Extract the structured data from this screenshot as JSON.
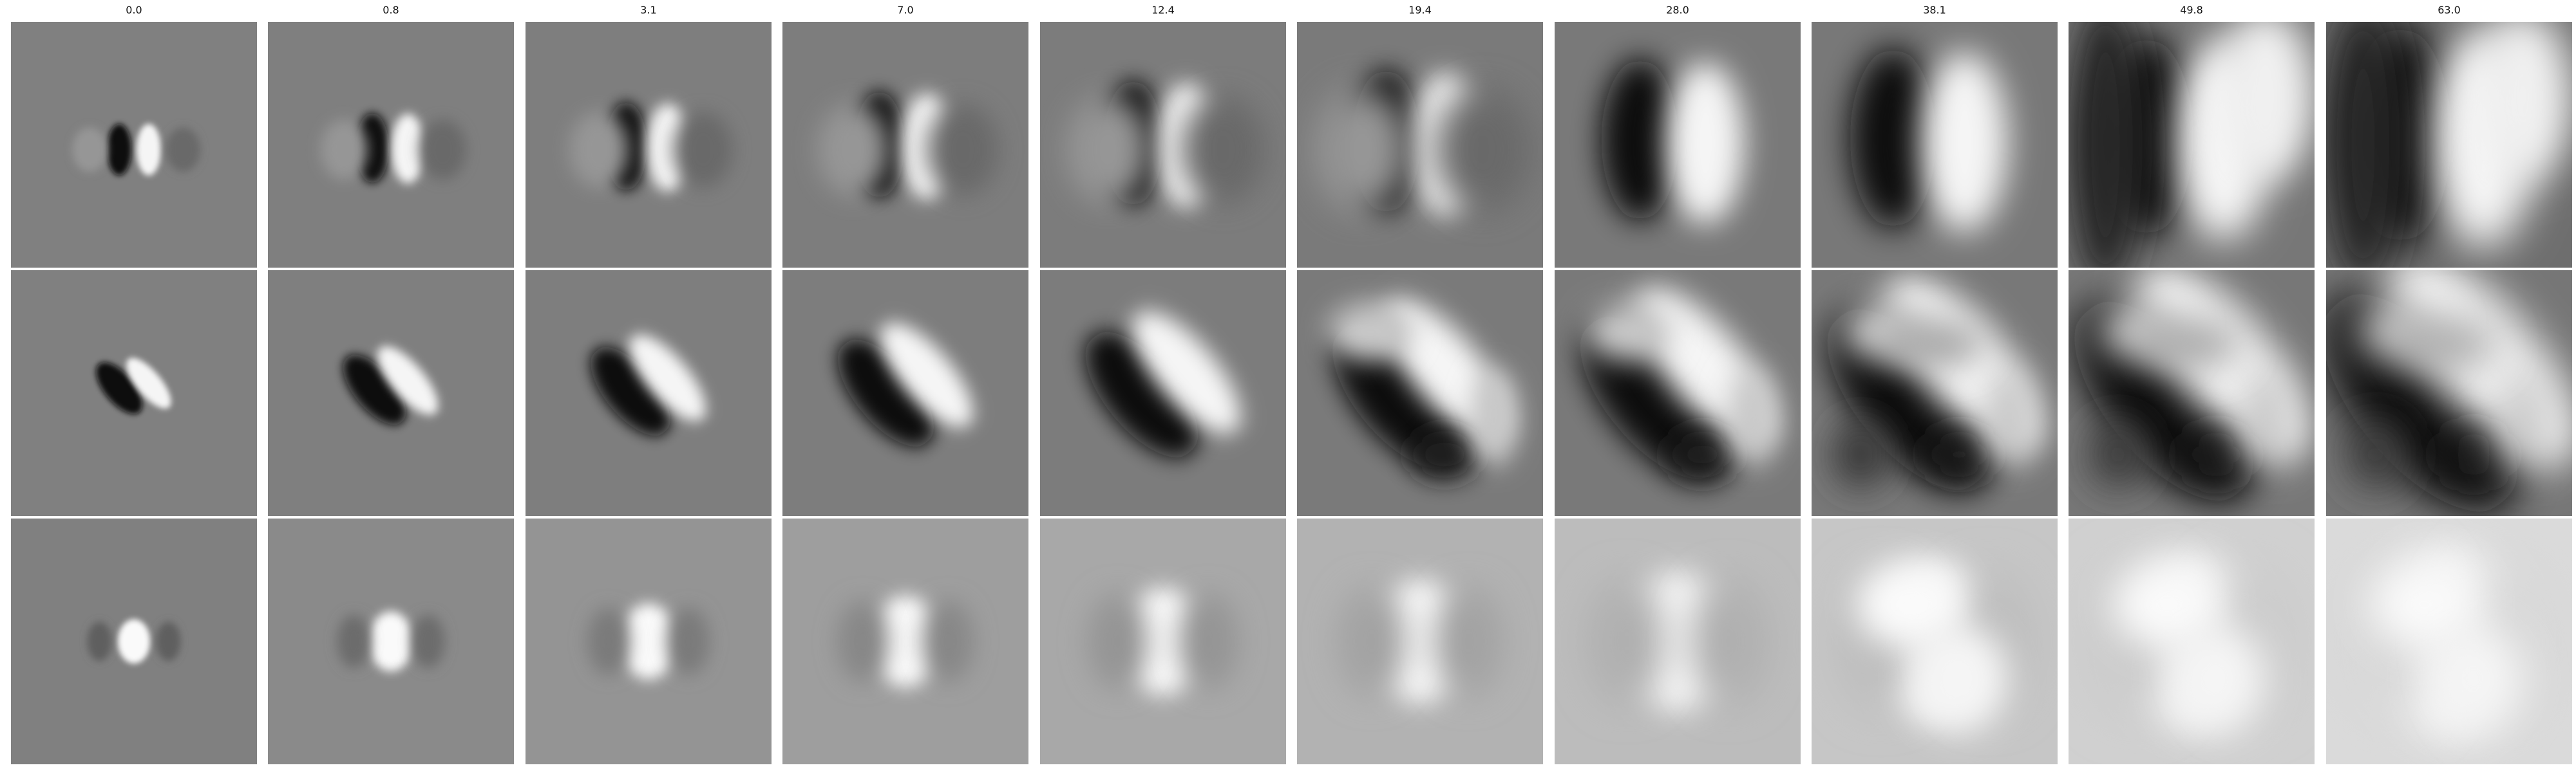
{
  "column_titles": [
    "0.0",
    "0.8",
    "3.1",
    "7.0",
    "12.4",
    "19.4",
    "28.0",
    "38.1",
    "49.8",
    "63.0"
  ],
  "row_count": 3,
  "colormap": "grayscale",
  "background_gray": "#808080"
}
